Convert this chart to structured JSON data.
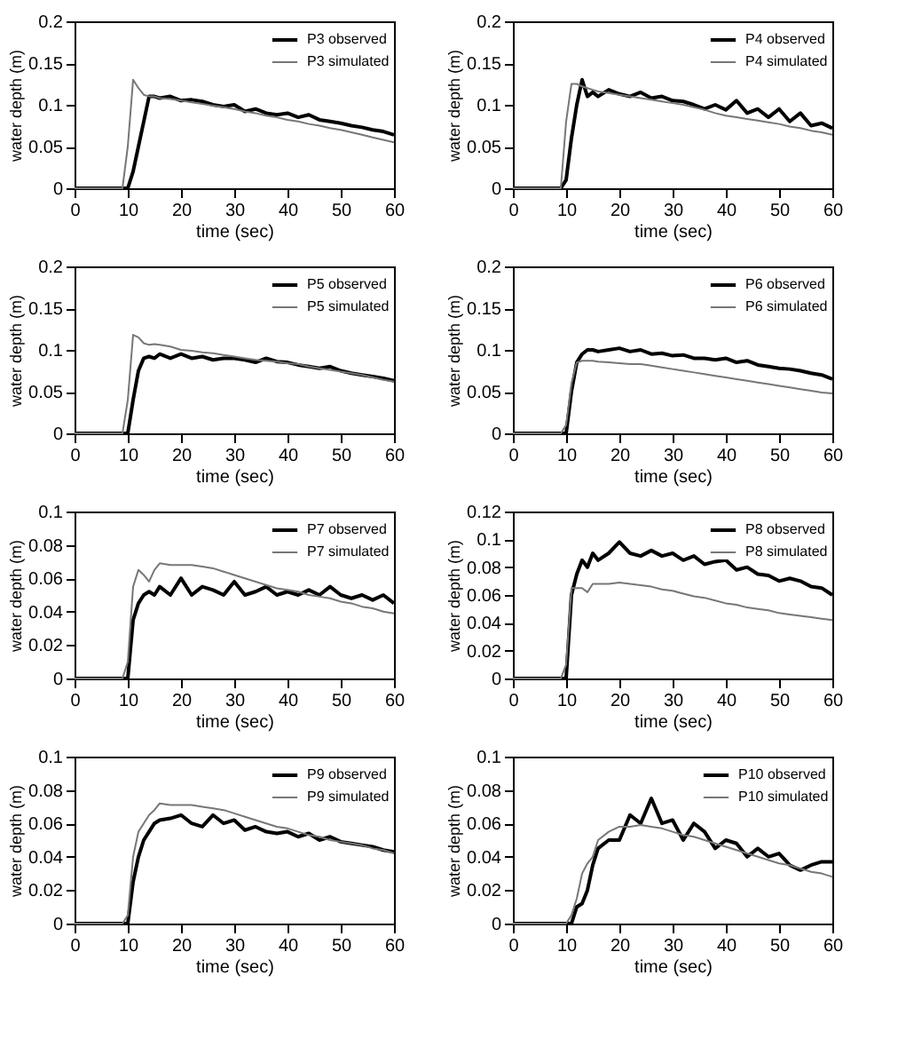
{
  "chart_data": [
    {
      "type": "line",
      "xlabel": "time (sec)",
      "ylabel": "water depth (m)",
      "xlim": [
        0,
        60
      ],
      "xticks": [
        0,
        10,
        20,
        30,
        40,
        50,
        60
      ],
      "ylim": [
        0,
        0.2
      ],
      "yticks": [
        0,
        0.05,
        0.1,
        0.15,
        0.2
      ],
      "grid": false,
      "legend": "top right",
      "x": [
        0,
        5,
        9,
        10,
        11,
        12,
        13,
        14,
        15,
        16,
        18,
        20,
        22,
        24,
        26,
        28,
        30,
        32,
        34,
        36,
        38,
        40,
        42,
        44,
        46,
        48,
        50,
        52,
        54,
        56,
        58,
        60
      ],
      "series": [
        {
          "name": "P3 observed",
          "color": "#000000",
          "values": [
            0,
            0,
            0,
            0,
            0.02,
            0.05,
            0.08,
            0.11,
            0.11,
            0.108,
            0.11,
            0.105,
            0.106,
            0.104,
            0.1,
            0.098,
            0.1,
            0.092,
            0.095,
            0.09,
            0.088,
            0.09,
            0.085,
            0.088,
            0.082,
            0.08,
            0.078,
            0.075,
            0.073,
            0.07,
            0.068,
            0.064
          ]
        },
        {
          "name": "P3 simulated",
          "color": "#777777",
          "values": [
            0,
            0,
            0,
            0.05,
            0.13,
            0.12,
            0.112,
            0.11,
            0.11,
            0.108,
            0.107,
            0.105,
            0.103,
            0.101,
            0.099,
            0.097,
            0.095,
            0.092,
            0.09,
            0.087,
            0.085,
            0.082,
            0.08,
            0.077,
            0.075,
            0.072,
            0.07,
            0.067,
            0.064,
            0.061,
            0.058,
            0.055
          ]
        }
      ]
    },
    {
      "type": "line",
      "xlabel": "time (sec)",
      "ylabel": "water depth (m)",
      "xlim": [
        0,
        60
      ],
      "xticks": [
        0,
        10,
        20,
        30,
        40,
        50,
        60
      ],
      "ylim": [
        0,
        0.2
      ],
      "yticks": [
        0,
        0.05,
        0.1,
        0.15,
        0.2
      ],
      "grid": false,
      "legend": "top right",
      "x": [
        0,
        5,
        9,
        10,
        11,
        12,
        13,
        14,
        15,
        16,
        18,
        20,
        22,
        24,
        26,
        28,
        30,
        32,
        34,
        36,
        38,
        40,
        42,
        44,
        46,
        48,
        50,
        52,
        54,
        56,
        58,
        60
      ],
      "series": [
        {
          "name": "P4 observed",
          "color": "#000000",
          "values": [
            0,
            0,
            0,
            0.01,
            0.06,
            0.1,
            0.13,
            0.11,
            0.115,
            0.11,
            0.118,
            0.113,
            0.11,
            0.115,
            0.108,
            0.11,
            0.105,
            0.104,
            0.1,
            0.095,
            0.1,
            0.094,
            0.105,
            0.09,
            0.095,
            0.085,
            0.095,
            0.08,
            0.09,
            0.075,
            0.078,
            0.072
          ]
        },
        {
          "name": "P4 simulated",
          "color": "#777777",
          "values": [
            0,
            0,
            0,
            0.08,
            0.125,
            0.125,
            0.122,
            0.12,
            0.118,
            0.116,
            0.114,
            0.112,
            0.11,
            0.108,
            0.106,
            0.104,
            0.102,
            0.1,
            0.097,
            0.094,
            0.09,
            0.087,
            0.085,
            0.083,
            0.081,
            0.079,
            0.077,
            0.074,
            0.072,
            0.069,
            0.067,
            0.064
          ]
        }
      ]
    },
    {
      "type": "line",
      "xlabel": "time (sec)",
      "ylabel": "water depth (m)",
      "xlim": [
        0,
        60
      ],
      "xticks": [
        0,
        10,
        20,
        30,
        40,
        50,
        60
      ],
      "ylim": [
        0,
        0.2
      ],
      "yticks": [
        0,
        0.05,
        0.1,
        0.15,
        0.2
      ],
      "grid": false,
      "legend": "top right",
      "x": [
        0,
        5,
        9,
        10,
        11,
        12,
        13,
        14,
        15,
        16,
        18,
        20,
        22,
        24,
        26,
        28,
        30,
        32,
        34,
        36,
        38,
        40,
        42,
        44,
        46,
        48,
        50,
        52,
        54,
        56,
        58,
        60
      ],
      "series": [
        {
          "name": "P5 observed",
          "color": "#000000",
          "values": [
            0,
            0,
            0,
            0,
            0.04,
            0.075,
            0.09,
            0.092,
            0.09,
            0.095,
            0.09,
            0.095,
            0.09,
            0.092,
            0.088,
            0.09,
            0.09,
            0.088,
            0.085,
            0.09,
            0.086,
            0.085,
            0.082,
            0.08,
            0.078,
            0.08,
            0.075,
            0.072,
            0.07,
            0.068,
            0.066,
            0.063
          ]
        },
        {
          "name": "P5 simulated",
          "color": "#777777",
          "values": [
            0,
            0,
            0,
            0.04,
            0.118,
            0.115,
            0.108,
            0.106,
            0.107,
            0.106,
            0.104,
            0.1,
            0.099,
            0.097,
            0.096,
            0.094,
            0.092,
            0.09,
            0.088,
            0.087,
            0.086,
            0.084,
            0.083,
            0.08,
            0.078,
            0.076,
            0.074,
            0.072,
            0.07,
            0.067,
            0.064,
            0.062
          ]
        }
      ]
    },
    {
      "type": "line",
      "xlabel": "time (sec)",
      "ylabel": "water depth (m)",
      "xlim": [
        0,
        60
      ],
      "xticks": [
        0,
        10,
        20,
        30,
        40,
        50,
        60
      ],
      "ylim": [
        0,
        0.2
      ],
      "yticks": [
        0,
        0.05,
        0.1,
        0.15,
        0.2
      ],
      "grid": false,
      "legend": "top right",
      "x": [
        0,
        5,
        9,
        10,
        11,
        12,
        13,
        14,
        15,
        16,
        18,
        20,
        22,
        24,
        26,
        28,
        30,
        32,
        34,
        36,
        38,
        40,
        42,
        44,
        46,
        48,
        50,
        52,
        54,
        56,
        58,
        60
      ],
      "series": [
        {
          "name": "P6 observed",
          "color": "#000000",
          "values": [
            0,
            0,
            0,
            0,
            0.05,
            0.085,
            0.095,
            0.1,
            0.1,
            0.098,
            0.1,
            0.102,
            0.098,
            0.1,
            0.095,
            0.096,
            0.093,
            0.094,
            0.09,
            0.09,
            0.088,
            0.09,
            0.085,
            0.087,
            0.082,
            0.08,
            0.078,
            0.077,
            0.075,
            0.072,
            0.07,
            0.065
          ]
        },
        {
          "name": "P6 simulated",
          "color": "#777777",
          "values": [
            0,
            0,
            0,
            0.01,
            0.06,
            0.085,
            0.087,
            0.087,
            0.087,
            0.086,
            0.085,
            0.084,
            0.083,
            0.083,
            0.081,
            0.079,
            0.077,
            0.075,
            0.073,
            0.071,
            0.069,
            0.067,
            0.065,
            0.063,
            0.061,
            0.059,
            0.057,
            0.055,
            0.053,
            0.051,
            0.049,
            0.048
          ]
        }
      ]
    },
    {
      "type": "line",
      "xlabel": "time (sec)",
      "ylabel": "water depth (m)",
      "xlim": [
        0,
        60
      ],
      "xticks": [
        0,
        10,
        20,
        30,
        40,
        50,
        60
      ],
      "ylim": [
        0,
        0.1
      ],
      "yticks": [
        0,
        0.02,
        0.04,
        0.06,
        0.08,
        0.1
      ],
      "grid": false,
      "legend": "top right",
      "x": [
        0,
        5,
        9,
        10,
        11,
        12,
        13,
        14,
        15,
        16,
        18,
        20,
        22,
        24,
        26,
        28,
        30,
        32,
        34,
        36,
        38,
        40,
        42,
        44,
        46,
        48,
        50,
        52,
        54,
        56,
        58,
        60
      ],
      "series": [
        {
          "name": "P7 observed",
          "color": "#000000",
          "values": [
            0,
            0,
            0,
            0,
            0.035,
            0.045,
            0.05,
            0.052,
            0.05,
            0.055,
            0.05,
            0.06,
            0.05,
            0.055,
            0.053,
            0.05,
            0.058,
            0.05,
            0.052,
            0.055,
            0.05,
            0.052,
            0.05,
            0.053,
            0.05,
            0.055,
            0.05,
            0.048,
            0.05,
            0.047,
            0.05,
            0.045
          ]
        },
        {
          "name": "P7 simulated",
          "color": "#777777",
          "values": [
            0,
            0,
            0,
            0.01,
            0.055,
            0.065,
            0.062,
            0.058,
            0.065,
            0.069,
            0.068,
            0.068,
            0.068,
            0.067,
            0.066,
            0.064,
            0.062,
            0.06,
            0.058,
            0.056,
            0.054,
            0.053,
            0.052,
            0.05,
            0.049,
            0.048,
            0.046,
            0.045,
            0.043,
            0.042,
            0.04,
            0.039
          ]
        }
      ]
    },
    {
      "type": "line",
      "xlabel": "time (sec)",
      "ylabel": "water depth (m)",
      "xlim": [
        0,
        60
      ],
      "xticks": [
        0,
        10,
        20,
        30,
        40,
        50,
        60
      ],
      "ylim": [
        0,
        0.12
      ],
      "yticks": [
        0,
        0.02,
        0.04,
        0.06,
        0.08,
        0.1,
        0.12
      ],
      "grid": false,
      "legend": "top right",
      "x": [
        0,
        5,
        9,
        10,
        11,
        12,
        13,
        14,
        15,
        16,
        18,
        20,
        22,
        24,
        26,
        28,
        30,
        32,
        34,
        36,
        38,
        40,
        42,
        44,
        46,
        48,
        50,
        52,
        54,
        56,
        58,
        60
      ],
      "series": [
        {
          "name": "P8 observed",
          "color": "#000000",
          "values": [
            0,
            0,
            0,
            0,
            0.06,
            0.075,
            0.085,
            0.08,
            0.09,
            0.085,
            0.09,
            0.098,
            0.09,
            0.088,
            0.092,
            0.088,
            0.09,
            0.085,
            0.088,
            0.082,
            0.084,
            0.085,
            0.078,
            0.08,
            0.075,
            0.074,
            0.07,
            0.072,
            0.07,
            0.066,
            0.065,
            0.06
          ]
        },
        {
          "name": "P8 simulated",
          "color": "#777777",
          "values": [
            0,
            0,
            0,
            0.01,
            0.065,
            0.065,
            0.065,
            0.062,
            0.068,
            0.068,
            0.068,
            0.069,
            0.068,
            0.067,
            0.066,
            0.064,
            0.063,
            0.061,
            0.059,
            0.058,
            0.056,
            0.054,
            0.053,
            0.051,
            0.05,
            0.049,
            0.047,
            0.046,
            0.045,
            0.044,
            0.043,
            0.042
          ]
        }
      ]
    },
    {
      "type": "line",
      "xlabel": "time (sec)",
      "ylabel": "water depth (m)",
      "xlim": [
        0,
        60
      ],
      "xticks": [
        0,
        10,
        20,
        30,
        40,
        50,
        60
      ],
      "ylim": [
        0,
        0.1
      ],
      "yticks": [
        0,
        0.02,
        0.04,
        0.06,
        0.08,
        0.1
      ],
      "grid": false,
      "legend": "top right",
      "x": [
        0,
        5,
        9,
        10,
        11,
        12,
        13,
        14,
        15,
        16,
        18,
        20,
        22,
        24,
        26,
        28,
        30,
        32,
        34,
        36,
        38,
        40,
        42,
        44,
        46,
        48,
        50,
        52,
        54,
        56,
        58,
        60
      ],
      "series": [
        {
          "name": "P9 observed",
          "color": "#000000",
          "values": [
            0,
            0,
            0,
            0,
            0.025,
            0.04,
            0.05,
            0.055,
            0.06,
            0.062,
            0.063,
            0.065,
            0.06,
            0.058,
            0.065,
            0.06,
            0.062,
            0.056,
            0.058,
            0.055,
            0.054,
            0.055,
            0.052,
            0.054,
            0.05,
            0.052,
            0.049,
            0.048,
            0.047,
            0.046,
            0.044,
            0.043
          ]
        },
        {
          "name": "P9 simulated",
          "color": "#777777",
          "values": [
            0,
            0,
            0,
            0.005,
            0.04,
            0.055,
            0.06,
            0.065,
            0.068,
            0.072,
            0.071,
            0.071,
            0.071,
            0.07,
            0.069,
            0.068,
            0.066,
            0.064,
            0.062,
            0.06,
            0.058,
            0.057,
            0.055,
            0.053,
            0.052,
            0.05,
            0.049,
            0.048,
            0.047,
            0.045,
            0.044,
            0.042
          ]
        }
      ]
    },
    {
      "type": "line",
      "xlabel": "time (sec)",
      "ylabel": "water depth (m)",
      "xlim": [
        0,
        60
      ],
      "xticks": [
        0,
        10,
        20,
        30,
        40,
        50,
        60
      ],
      "ylim": [
        0,
        0.1
      ],
      "yticks": [
        0,
        0.02,
        0.04,
        0.06,
        0.08,
        0.1
      ],
      "grid": false,
      "legend": "top right",
      "x": [
        0,
        5,
        9,
        10,
        11,
        12,
        13,
        14,
        15,
        16,
        18,
        20,
        22,
        24,
        26,
        28,
        30,
        32,
        34,
        36,
        38,
        40,
        42,
        44,
        46,
        48,
        50,
        52,
        54,
        56,
        58,
        60
      ],
      "series": [
        {
          "name": "P10 observed",
          "color": "#000000",
          "values": [
            0,
            0,
            0,
            0,
            0,
            0.01,
            0.012,
            0.02,
            0.035,
            0.045,
            0.05,
            0.05,
            0.065,
            0.06,
            0.075,
            0.06,
            0.062,
            0.05,
            0.06,
            0.055,
            0.045,
            0.05,
            0.048,
            0.04,
            0.045,
            0.04,
            0.042,
            0.035,
            0.032,
            0.035,
            0.037,
            0.037
          ]
        },
        {
          "name": "P10 simulated",
          "color": "#777777",
          "values": [
            0,
            0,
            0,
            0,
            0.005,
            0.015,
            0.03,
            0.036,
            0.04,
            0.05,
            0.055,
            0.058,
            0.058,
            0.059,
            0.058,
            0.057,
            0.055,
            0.053,
            0.052,
            0.05,
            0.048,
            0.046,
            0.044,
            0.042,
            0.04,
            0.038,
            0.036,
            0.035,
            0.033,
            0.031,
            0.03,
            0.028
          ]
        }
      ]
    }
  ]
}
